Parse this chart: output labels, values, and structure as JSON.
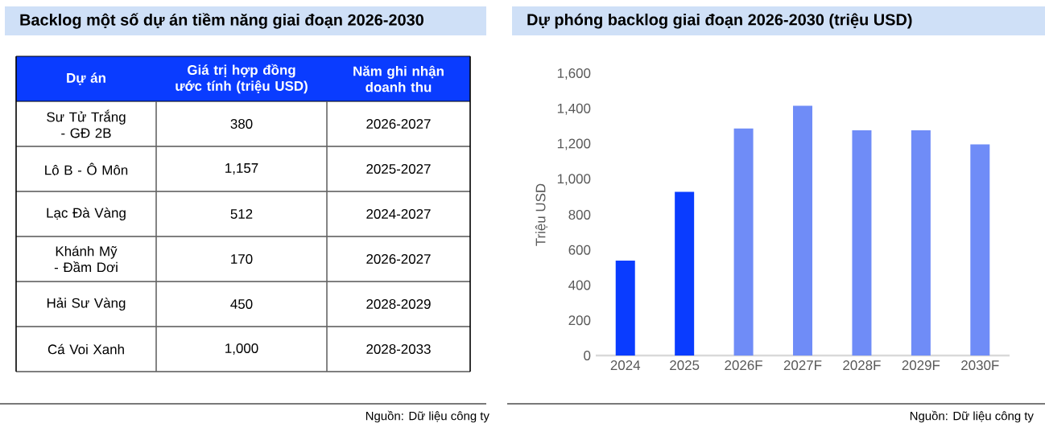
{
  "chart_data": [
    {
      "type": "other",
      "title": "Backlog một số dự án tiềm năng giai đoạn 2026-2030",
      "categories": [
        "Sư Tử Trắng - GĐ 2B",
        "Lô B - Ô Môn",
        "Lạc Đà Vàng",
        "Khánh Mỹ - Đầm Dơi",
        "Hải Sư Vàng",
        "Cá Voi Xanh"
      ],
      "value_labels": [
        "380",
        "1,157",
        "512",
        "170",
        "450",
        "1,000"
      ],
      "annotations": [
        "Dự án",
        "Giá trị hợp đồng ước tính (triệu USD)",
        "Năm ghi nhận doanh thu",
        "2026-2027",
        "2025-2027",
        "2024-2027",
        "2026-2027",
        "2028-2029",
        "2028-2033",
        "Nguồn: Dữ liệu công ty"
      ]
    },
    {
      "type": "bar",
      "title": "Dự phóng backlog giai đoạn 2026-2030 (triệu USD)",
      "ylabel": "Triệu USD",
      "categories": [
        "2024",
        "2025",
        "2026F",
        "2027F",
        "2028F",
        "2029F",
        "2030F"
      ],
      "values": [
        540,
        930,
        1290,
        1420,
        1280,
        1280,
        1200
      ],
      "colors": [
        "#0a3cff",
        "#0a3cff",
        "#6f8cf7",
        "#6f8cf7",
        "#6f8cf7",
        "#6f8cf7",
        "#6f8cf7"
      ],
      "ylim": [
        0,
        1600
      ],
      "yticks": [
        0,
        200,
        400,
        600,
        800,
        {
          "value": 1000,
          "label": "1,000"
        },
        {
          "value": 1200,
          "label": "1,200"
        },
        {
          "value": 1400,
          "label": "1,400"
        },
        {
          "value": 1600,
          "label": "1,600"
        }
      ],
      "grid": false,
      "annotations": [
        "Nguồn: Dữ liệu công ty"
      ]
    }
  ]
}
